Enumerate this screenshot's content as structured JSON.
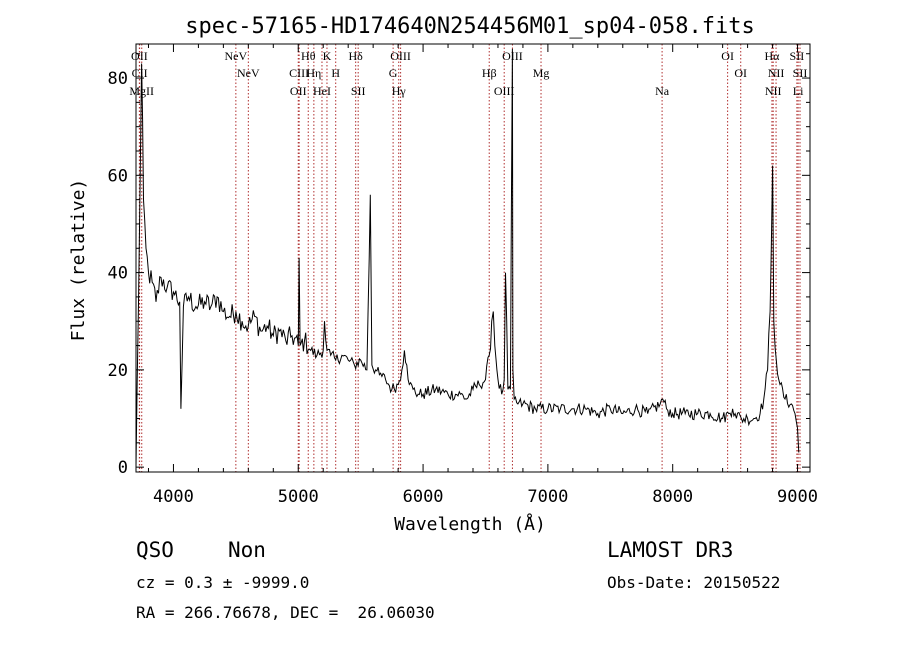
{
  "chart_data": {
    "type": "line",
    "title": "spec-57165-HD174640N254456M01_sp04-058.fits",
    "xlabel": "Wavelength (Å)",
    "ylabel": "Flux (relative)",
    "xlim": [
      3700,
      9100
    ],
    "ylim": [
      -1,
      87
    ],
    "xticks": [
      4000,
      5000,
      6000,
      7000,
      8000,
      9000
    ],
    "yticks": [
      0,
      20,
      40,
      60,
      80
    ],
    "grid": false,
    "series": [
      {
        "color": "#000000",
        "x": [
          3700,
          3730,
          3745,
          3760,
          3780,
          3800,
          3830,
          3860,
          3900,
          3950,
          4000,
          4050,
          4060,
          4080,
          4120,
          4180,
          4250,
          4300,
          4350,
          4400,
          4450,
          4500,
          4550,
          4600,
          4650,
          4700,
          4750,
          4800,
          4850,
          4900,
          4950,
          5000,
          5007,
          5015,
          5050,
          5100,
          5150,
          5200,
          5210,
          5230,
          5260,
          5300,
          5350,
          5400,
          5450,
          5500,
          5550,
          5577,
          5590,
          5620,
          5650,
          5700,
          5750,
          5800,
          5830,
          5850,
          5870,
          5890,
          5920,
          5960,
          6000,
          6100,
          6200,
          6300,
          6350,
          6400,
          6450,
          6500,
          6530,
          6550,
          6563,
          6575,
          6600,
          6630,
          6650,
          6660,
          6680,
          6700,
          6716,
          6720,
          6730,
          6760,
          6800,
          6900,
          7000,
          7100,
          7200,
          7300,
          7400,
          7500,
          7600,
          7700,
          7800,
          7900,
          7920,
          7950,
          8000,
          8100,
          8200,
          8300,
          8400,
          8450,
          8480,
          8500,
          8550,
          8600,
          8650,
          8700,
          8730,
          8760,
          8780,
          8790,
          8800,
          8810,
          8830,
          8860,
          8900,
          8950,
          8980,
          9000,
          9010
        ],
        "y": [
          0,
          52,
          83,
          55,
          45,
          40,
          38,
          34,
          39,
          37,
          36,
          34,
          12,
          33,
          35,
          33,
          34,
          33,
          35,
          32,
          31,
          32,
          30,
          29,
          31,
          28,
          29,
          27,
          28,
          26,
          27,
          25,
          43,
          25,
          26,
          24,
          23,
          24,
          30,
          24,
          23,
          22,
          23,
          22,
          21,
          22,
          20,
          56,
          21,
          20,
          19,
          18,
          16,
          17,
          20,
          24,
          21,
          17,
          16,
          15,
          15,
          16,
          15,
          15,
          14,
          16,
          17,
          18,
          23,
          30,
          32,
          25,
          18,
          15,
          18,
          40,
          16,
          16,
          86,
          20,
          14,
          13,
          13,
          12,
          12,
          12,
          12,
          12,
          11,
          12,
          11,
          12,
          11,
          13,
          14,
          12,
          11,
          11,
          11,
          11,
          10,
          11,
          12,
          11,
          10,
          10,
          10,
          11,
          14,
          20,
          32,
          45,
          62,
          30,
          22,
          17,
          14,
          13,
          11,
          8,
          3
        ],
        "noise": 1.3
      }
    ],
    "annotations": [
      {
        "x": 3727,
        "row": 1,
        "label": "OII"
      },
      {
        "x": 3729,
        "row": 2,
        "label": "CII"
      },
      {
        "x": 3746,
        "row": 3,
        "label": "MgII"
      },
      {
        "x": 4500,
        "row": 1,
        "label": "NeV"
      },
      {
        "x": 4600,
        "row": 2,
        "label": "NeV"
      },
      {
        "x": 5000,
        "row": 3,
        "label": "OII"
      },
      {
        "x": 5007,
        "row": 2,
        "label": "CIII"
      },
      {
        "x": 5080,
        "row": 1,
        "label": "Hθ"
      },
      {
        "x": 5125,
        "row": 2,
        "label": "Hη"
      },
      {
        "x": 5190,
        "row": 3,
        "label": "HeI"
      },
      {
        "x": 5230,
        "row": 1,
        "label": "K"
      },
      {
        "x": 5300,
        "row": 2,
        "label": "H"
      },
      {
        "x": 5460,
        "row": 1,
        "label": "Hδ"
      },
      {
        "x": 5480,
        "row": 3,
        "label": "SII"
      },
      {
        "x": 5760,
        "row": 2,
        "label": "G"
      },
      {
        "x": 5805,
        "row": 3,
        "label": "Hγ"
      },
      {
        "x": 5820,
        "row": 1,
        "label": "OIII"
      },
      {
        "x": 6530,
        "row": 2,
        "label": "Hβ"
      },
      {
        "x": 6650,
        "row": 3,
        "label": "OIII"
      },
      {
        "x": 6716,
        "row": 1,
        "label": "OIII"
      },
      {
        "x": 6945,
        "row": 2,
        "label": "Mg"
      },
      {
        "x": 7915,
        "row": 3,
        "label": "Na"
      },
      {
        "x": 8440,
        "row": 1,
        "label": "OI"
      },
      {
        "x": 8545,
        "row": 2,
        "label": "OI"
      },
      {
        "x": 8795,
        "row": 1,
        "label": "Hα"
      },
      {
        "x": 8805,
        "row": 3,
        "label": "NII"
      },
      {
        "x": 8828,
        "row": 2,
        "label": "NII"
      },
      {
        "x": 8995,
        "row": 1,
        "label": "SII"
      },
      {
        "x": 9005,
        "row": 3,
        "label": "Li"
      },
      {
        "x": 9020,
        "row": 2,
        "label": "SII"
      }
    ]
  },
  "footer": {
    "class_label": "QSO",
    "subclass_label": "Non",
    "cz_line": "cz = 0.3 ± -9999.0",
    "radec_line": "RA = 266.76678, DEC =  26.06030",
    "survey_label": "LAMOST DR3",
    "obs_date_line": "Obs-Date: 20150522"
  },
  "colors": {
    "spectrum": "#000000",
    "marker_lines": "#b03030",
    "axes": "#000000",
    "background": "#ffffff"
  }
}
